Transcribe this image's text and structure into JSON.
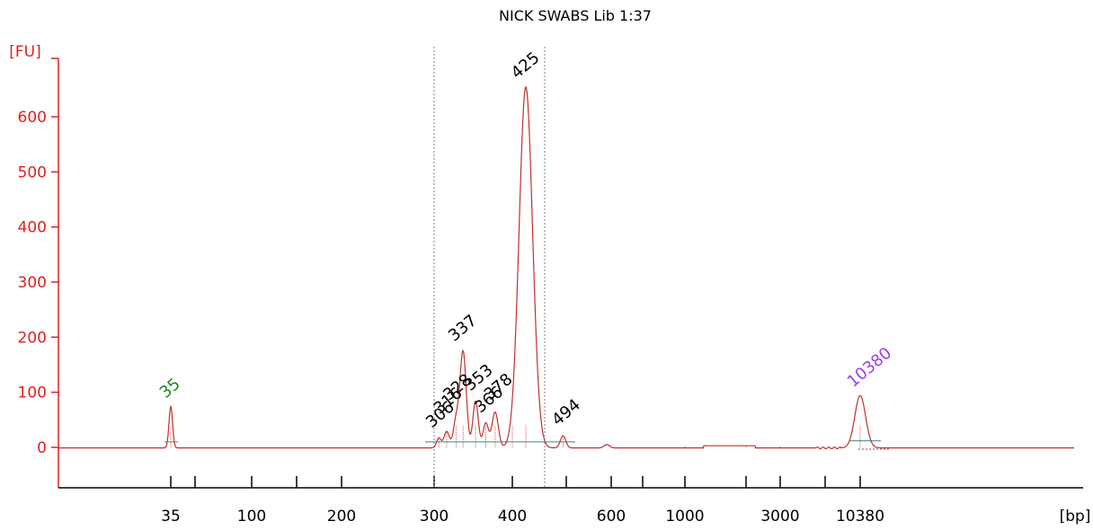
{
  "chart_data": {
    "type": "line",
    "title": "NICK SWABS Lib 1:37",
    "ylabel": "[FU]",
    "xlabel": "[bp]",
    "y_ticks": [
      "0",
      "100",
      "200",
      "300",
      "400",
      "500",
      "600"
    ],
    "y_tick_values": [
      0,
      100,
      200,
      300,
      400,
      500,
      600
    ],
    "ylim": [
      -70,
      720
    ],
    "x_tick_labels": [
      "35",
      "100",
      "200",
      "300",
      "400",
      "600",
      "1000",
      "3000",
      "10380"
    ],
    "x_scale": "nonlinear (electropherogram size ladder)",
    "series": [
      {
        "x": [
          "35",
          "100",
          "200",
          "300",
          "306",
          "316",
          "328",
          "337",
          "353",
          "366",
          "378",
          "400",
          "425",
          "494",
          "600",
          "1000",
          "2000",
          "3000",
          "5000",
          "10380",
          "15000"
        ],
        "values": [
          75,
          0,
          0,
          0,
          18,
          30,
          48,
          175,
          85,
          45,
          65,
          80,
          655,
          22,
          6,
          3,
          3,
          3,
          0,
          95,
          0
        ]
      }
    ],
    "peak_labels": [
      {
        "label": "35",
        "x": "35",
        "y": 75,
        "color": "#1a8a1a"
      },
      {
        "label": "306",
        "x": "306",
        "y": 18,
        "color": "#000000"
      },
      {
        "label": "316",
        "x": "316",
        "y": 30,
        "color": "#000000"
      },
      {
        "label": "328",
        "x": "328",
        "y": 48,
        "color": "#000000"
      },
      {
        "label": "337",
        "x": "337",
        "y": 175,
        "color": "#000000"
      },
      {
        "label": "353",
        "x": "353",
        "y": 85,
        "color": "#000000"
      },
      {
        "label": "366",
        "x": "366",
        "y": 45,
        "color": "#000000"
      },
      {
        "label": "378",
        "x": "378",
        "y": 65,
        "color": "#000000"
      },
      {
        "label": "425",
        "x": "425",
        "y": 655,
        "color": "#000000"
      },
      {
        "label": "494",
        "x": "494",
        "y": 22,
        "color": "#000000"
      },
      {
        "label": "10380",
        "x": "10380",
        "y": 95,
        "color": "#9b3fe0"
      }
    ],
    "region_markers": [
      "300",
      "460"
    ],
    "colors": {
      "axis": "#e02020",
      "trace": "#c03030",
      "baseline": "#5f9f9f",
      "marker": "#7f7f9f"
    },
    "grid": false
  }
}
